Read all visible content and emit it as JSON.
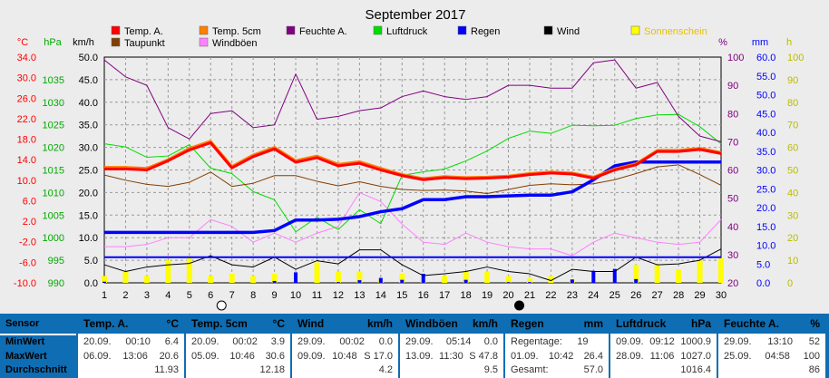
{
  "chart_data": {
    "type": "line",
    "title": "September 2017",
    "x": [
      1,
      2,
      3,
      4,
      5,
      6,
      7,
      8,
      9,
      10,
      11,
      12,
      13,
      14,
      15,
      16,
      17,
      18,
      19,
      20,
      21,
      22,
      23,
      24,
      25,
      26,
      27,
      28,
      29,
      30
    ],
    "legend": [
      {
        "label": "Temp. A.",
        "color": "#ff0000"
      },
      {
        "label": "Temp. 5cm",
        "color": "#ff7f00"
      },
      {
        "label": "Feuchte A.",
        "color": "#800080"
      },
      {
        "label": "Luftdruck",
        "color": "#00dd00"
      },
      {
        "label": "Regen",
        "color": "#0000ff"
      },
      {
        "label": "Wind",
        "color": "#000000"
      },
      {
        "label": "Sonnenschein",
        "color": "#ffff00"
      },
      {
        "label": "Taupunkt",
        "color": "#804000"
      },
      {
        "label": "Windböen",
        "color": "#ff80ff"
      }
    ],
    "axes": {
      "temp": {
        "unit": "°C",
        "ticks": [
          "34.0",
          "30.0",
          "26.0",
          "22.0",
          "18.0",
          "14.0",
          "10.0",
          "6.0",
          "2.0",
          "-2.0",
          "-6.0",
          "-10.0"
        ],
        "min": -10,
        "max": 34,
        "color": "#ff0000"
      },
      "pressure": {
        "unit": "hPa",
        "ticks": [
          "1035",
          "1030",
          "1025",
          "1020",
          "1015",
          "1010",
          "1005",
          "1000",
          "995",
          "990"
        ],
        "min": 990,
        "max": 1040,
        "color": "#00aa00"
      },
      "wind": {
        "unit": "km/h",
        "ticks": [
          "50.0",
          "45.0",
          "40.0",
          "35.0",
          "30.0",
          "25.0",
          "20.0",
          "15.0",
          "10.0",
          "5.0",
          "0.0"
        ],
        "min": 0,
        "max": 50,
        "color": "#000000"
      },
      "humidity": {
        "unit": "%",
        "ticks": [
          "100",
          "90",
          "80",
          "70",
          "60",
          "50",
          "40",
          "30",
          "20"
        ],
        "min": 20,
        "max": 100,
        "color": "#800080"
      },
      "rain": {
        "unit": "mm",
        "ticks": [
          "60.0",
          "55.0",
          "50.0",
          "45.0",
          "40.0",
          "35.0",
          "30.0",
          "25.0",
          "20.0",
          "15.0",
          "10.0",
          "5.0",
          "0.0"
        ],
        "min": 0,
        "max": 60,
        "color": "#0000ff"
      },
      "sun": {
        "unit": "h",
        "ticks": [
          "100",
          "90",
          "80",
          "70",
          "60",
          "50",
          "40",
          "30",
          "20",
          "10",
          "0"
        ],
        "min": 0,
        "max": 100,
        "color": "#bbbb00"
      }
    },
    "moon_phases": [
      {
        "day": 6,
        "phase": "full"
      },
      {
        "day": 20,
        "phase": "new"
      }
    ],
    "series": [
      {
        "name": "Temp. A.",
        "axis": "temp",
        "values": [
          12.2,
          12.2,
          12.0,
          13.8,
          15.9,
          17.3,
          12.4,
          14.6,
          16.1,
          13.5,
          14.4,
          12.8,
          13.3,
          12.0,
          10.9,
          10.1,
          10.5,
          10.3,
          10.4,
          10.6,
          11.1,
          11.4,
          11.2,
          10.4,
          12.0,
          13.0,
          15.6,
          15.6,
          16.0,
          15.2
        ]
      },
      {
        "name": "Temp. 5cm",
        "axis": "temp",
        "values": [
          12.6,
          12.6,
          12.4,
          14.1,
          16.3,
          17.7,
          12.8,
          15.0,
          16.5,
          13.9,
          14.8,
          13.2,
          13.7,
          12.4,
          11.2,
          10.4,
          10.8,
          10.6,
          10.7,
          10.9,
          11.4,
          11.7,
          11.5,
          10.7,
          12.3,
          13.3,
          15.9,
          15.9,
          16.3,
          15.5
        ]
      },
      {
        "name": "Taupunkt",
        "axis": "temp",
        "values": [
          11.0,
          10.0,
          9.2,
          8.8,
          9.6,
          11.6,
          8.8,
          9.4,
          10.9,
          10.9,
          9.8,
          8.9,
          9.7,
          8.8,
          8.2,
          8.0,
          8.1,
          7.9,
          7.4,
          8.2,
          9.0,
          9.3,
          9.1,
          9.3,
          10.1,
          11.3,
          12.6,
          13.0,
          11.1,
          9.0
        ]
      },
      {
        "name": "Feuchte A.",
        "axis": "humidity",
        "values": [
          99,
          93,
          90,
          75,
          71,
          80,
          81,
          75,
          76,
          94,
          78,
          79,
          81,
          82,
          86,
          88,
          86,
          85,
          86,
          90,
          90,
          89,
          89,
          98,
          99,
          89,
          91,
          79,
          72,
          70
        ]
      },
      {
        "name": "Luftdruck",
        "axis": "pressure",
        "values": [
          1020.8,
          1020.1,
          1017.8,
          1018.1,
          1020.6,
          1015.4,
          1014.2,
          1010.2,
          1008.4,
          1001.3,
          1004.5,
          1001.8,
          1006.2,
          1003.1,
          1013.8,
          1014.6,
          1015.2,
          1017.0,
          1019.2,
          1022.0,
          1023.6,
          1023.1,
          1024.9,
          1024.8,
          1024.9,
          1026.4,
          1027.2,
          1027.3,
          1024.6,
          1020.8
        ]
      },
      {
        "name": "Regen",
        "axis": "rain",
        "values": [
          13.4,
          13.4,
          13.4,
          13.4,
          13.4,
          13.4,
          13.4,
          13.4,
          13.9,
          16.7,
          16.7,
          16.9,
          17.6,
          18.9,
          19.7,
          22.1,
          22.1,
          22.9,
          22.9,
          23.1,
          23.3,
          23.3,
          24.2,
          27.4,
          31.1,
          32.1,
          32.1,
          32.1,
          32.1,
          32.1
        ]
      },
      {
        "name": "Regen-Linie",
        "axis": "rain",
        "values": [
          6.8,
          6.8,
          6.8,
          6.8,
          6.8,
          6.8,
          6.8,
          6.8,
          6.8,
          6.8,
          6.8,
          6.8,
          6.8,
          6.8,
          6.8,
          6.8,
          6.8,
          6.8,
          6.8,
          6.8,
          6.8,
          6.8,
          6.8,
          6.8,
          6.8,
          6.8,
          6.8,
          6.8,
          6.8,
          6.8
        ]
      },
      {
        "name": "Wind",
        "axis": "wind",
        "values": [
          4.0,
          2.5,
          3.5,
          4.0,
          4.3,
          6.0,
          4.0,
          3.5,
          5.7,
          3.0,
          4.9,
          4.2,
          7.3,
          7.3,
          4.0,
          1.6,
          2.0,
          2.5,
          3.5,
          2.5,
          2.0,
          0.5,
          3.0,
          2.5,
          2.5,
          5.7,
          4.0,
          4.2,
          5.0,
          7.5
        ]
      },
      {
        "name": "Windböen",
        "axis": "wind",
        "values": [
          8.0,
          8.0,
          8.5,
          10.0,
          10.0,
          14.0,
          12.5,
          9.0,
          11.0,
          9.0,
          11.0,
          12.5,
          20.0,
          18.0,
          13.0,
          9.0,
          8.5,
          11.0,
          9.0,
          8.0,
          7.5,
          7.5,
          6.0,
          9.0,
          11.0,
          10.0,
          9.0,
          8.5,
          9.0,
          14.0
        ]
      },
      {
        "name": "Regen-Tag",
        "axis": "rain",
        "values": [
          0.3,
          0,
          0,
          0,
          0,
          0,
          0,
          0,
          0.5,
          2.8,
          0,
          0.2,
          0.7,
          1.3,
          0.8,
          2.4,
          0,
          0.8,
          0,
          0.2,
          0.2,
          0,
          0.9,
          3.2,
          3.7,
          1.0,
          0,
          0,
          0,
          0
        ]
      },
      {
        "name": "Sonnenschein",
        "axis": "sun",
        "values": [
          3,
          5,
          3,
          10,
          11,
          3,
          4,
          3,
          4,
          0,
          9,
          5,
          5,
          1,
          4,
          1,
          3,
          5,
          5,
          3,
          2,
          3,
          1,
          0,
          0,
          8,
          8,
          6,
          10,
          11
        ]
      }
    ]
  },
  "stats": {
    "row_labels": [
      "Sensor",
      "MinWert",
      "MaxWert",
      "Durchschnitt"
    ],
    "columns": [
      {
        "title": "Temp. A.",
        "unit": "°C",
        "min_date": "20.09.",
        "min_time": "00:10",
        "min_val": "6.4",
        "max_date": "06.09.",
        "max_time": "13:06",
        "max_val": "20.6",
        "avg": "11.93"
      },
      {
        "title": "Temp. 5cm",
        "unit": "°C",
        "min_date": "20.09.",
        "min_time": "00:02",
        "min_val": "3.9",
        "max_date": "05.09.",
        "max_time": "10:46",
        "max_val": "30.6",
        "avg": "12.18"
      },
      {
        "title": "Wind",
        "unit": "km/h",
        "min_date": "29.09.",
        "min_time": "00:02",
        "min_val": "0.0",
        "max_date": "09.09.",
        "max_time": "10:48",
        "max_val": "S 17.0",
        "avg": "4.2"
      },
      {
        "title": "Windböen",
        "unit": "km/h",
        "min_date": "29.09.",
        "min_time": "05:14",
        "min_val": "0.0",
        "max_date": "13.09.",
        "max_time": "11:30",
        "max_val": "S 47.8",
        "avg": "9.5"
      },
      {
        "title": "Regen",
        "unit": "mm",
        "min_date": "Regentage:",
        "min_time": "19",
        "min_val": "",
        "max_date": "01.09.",
        "max_time": "10:42",
        "max_val": "26.4",
        "avg_label": "Gesamt:",
        "avg": "57.0"
      },
      {
        "title": "Luftdruck",
        "unit": "hPa",
        "min_date": "09.09.",
        "min_time": "09:12",
        "min_val": "1000.9",
        "max_date": "28.09.",
        "max_time": "11:06",
        "max_val": "1027.0",
        "avg": "1016.4"
      },
      {
        "title": "Feuchte A.",
        "unit": "%",
        "min_date": "29.09.",
        "min_time": "13:10",
        "min_val": "52",
        "max_date": "25.09.",
        "max_time": "04:58",
        "max_val": "100",
        "avg": "86"
      }
    ]
  }
}
